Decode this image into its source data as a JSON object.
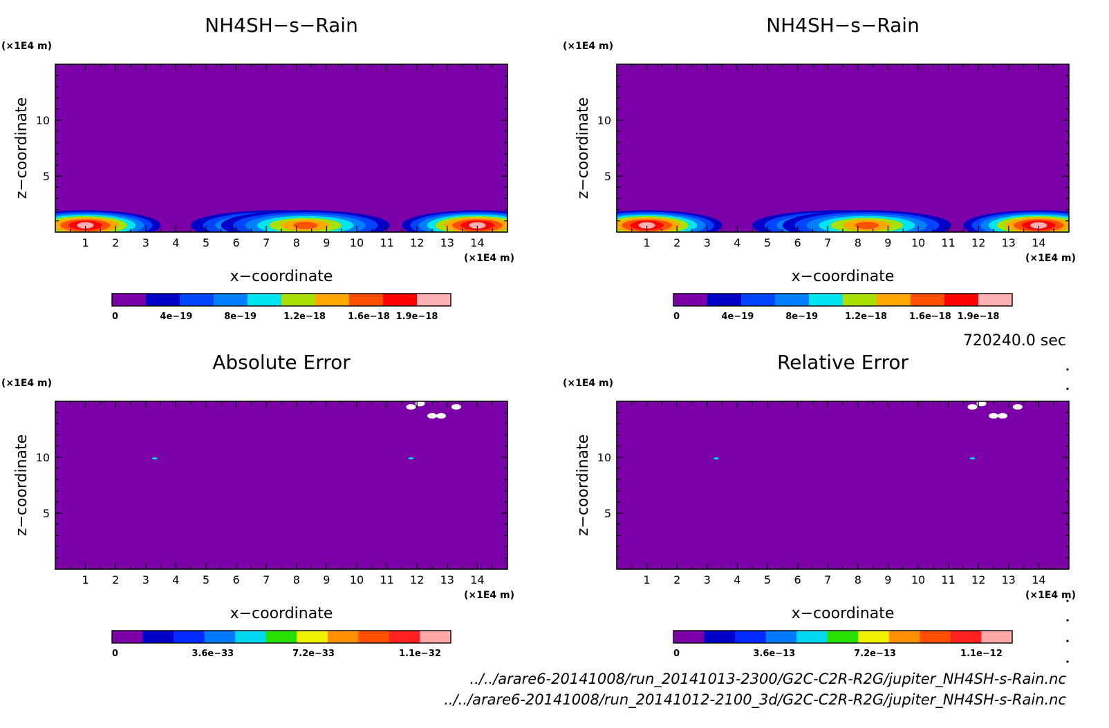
{
  "figure": {
    "time_label": "720240.0 sec",
    "files": [
      "../../arare6-20141008/run_20141013-2300/G2C-C2R-R2G/jupiter_NH4SH-s-Rain.nc",
      "../../arare6-20141008/run_20141012-2100_3d/G2C-C2R-R2G/jupiter_NH4SH-s-Rain.nc"
    ]
  },
  "chart_data": [
    {
      "type": "heatmap",
      "title": "NH4SH−s−Rain",
      "xlabel": "x−coordinate",
      "ylabel": "z−coordinate",
      "x_unit": "(×1E4 m)",
      "y_unit": "(×1E4 m)",
      "xlim": [
        0,
        15
      ],
      "ylim": [
        0,
        15
      ],
      "x_ticks": [
        1,
        2,
        3,
        4,
        5,
        6,
        7,
        8,
        9,
        10,
        11,
        12,
        13,
        14
      ],
      "y_ticks": [
        5,
        10
      ],
      "background_level": 0,
      "features": [
        {
          "x": 1.0,
          "z": 0.6,
          "half_width": 2.5,
          "peak": 1.9e-18
        },
        {
          "x": 14.0,
          "z": 0.6,
          "half_width": 2.5,
          "peak": 1.9e-18
        },
        {
          "x": 7.3,
          "z": 0.6,
          "half_width": 2.8,
          "peak": 1.3e-18
        },
        {
          "x": 8.3,
          "z": 0.6,
          "half_width": 2.8,
          "peak": 1.3e-18
        }
      ],
      "colorbar": {
        "colors": [
          "#7b00a8",
          "#0000c8",
          "#0044ff",
          "#0080ff",
          "#00e4f0",
          "#a8e000",
          "#ffa800",
          "#ff5000",
          "#ff0000",
          "#ffb0b0"
        ],
        "tick_labels": [
          "0",
          "4e−19",
          "8e−19",
          "1.2e−18",
          "1.6e−18",
          "1.9e−18"
        ],
        "tick_values": [
          0,
          4e-19,
          8e-19,
          1.2e-18,
          1.6e-18,
          1.9e-18
        ]
      }
    },
    {
      "type": "heatmap",
      "title": "NH4SH−s−Rain",
      "xlabel": "x−coordinate",
      "ylabel": "z−coordinate",
      "x_unit": "(×1E4 m)",
      "y_unit": "(×1E4 m)",
      "xlim": [
        0,
        15
      ],
      "ylim": [
        0,
        15
      ],
      "x_ticks": [
        1,
        2,
        3,
        4,
        5,
        6,
        7,
        8,
        9,
        10,
        11,
        12,
        13,
        14
      ],
      "y_ticks": [
        5,
        10
      ],
      "background_level": 0,
      "features": [
        {
          "x": 1.0,
          "z": 0.6,
          "half_width": 2.5,
          "peak": 1.9e-18
        },
        {
          "x": 14.0,
          "z": 0.6,
          "half_width": 2.5,
          "peak": 1.9e-18
        },
        {
          "x": 7.3,
          "z": 0.6,
          "half_width": 2.8,
          "peak": 1.3e-18
        },
        {
          "x": 8.3,
          "z": 0.6,
          "half_width": 2.8,
          "peak": 1.3e-18
        }
      ],
      "colorbar": {
        "colors": [
          "#7b00a8",
          "#0000c8",
          "#0044ff",
          "#0080ff",
          "#00e4f0",
          "#a8e000",
          "#ffa800",
          "#ff5000",
          "#ff0000",
          "#ffb0b0"
        ],
        "tick_labels": [
          "0",
          "4e−19",
          "8e−19",
          "1.2e−18",
          "1.6e−18",
          "1.9e−18"
        ],
        "tick_values": [
          0,
          4e-19,
          8e-19,
          1.2e-18,
          1.6e-18,
          1.9e-18
        ]
      }
    },
    {
      "type": "heatmap",
      "title": "Absolute Error",
      "xlabel": "x−coordinate",
      "ylabel": "z−coordinate",
      "x_unit": "(×1E4 m)",
      "y_unit": "(×1E4 m)",
      "xlim": [
        0,
        15
      ],
      "ylim": [
        0,
        15
      ],
      "x_ticks": [
        1,
        2,
        3,
        4,
        5,
        6,
        7,
        8,
        9,
        10,
        11,
        12,
        13,
        14
      ],
      "y_ticks": [
        5,
        10
      ],
      "background_level": 0,
      "missing_spots": [
        {
          "x": 11.8,
          "z": 14.5
        },
        {
          "x": 12.1,
          "z": 14.8
        },
        {
          "x": 12.5,
          "z": 13.7
        },
        {
          "x": 12.8,
          "z": 13.7
        },
        {
          "x": 13.3,
          "z": 14.5
        }
      ],
      "small_spots": [
        {
          "x": 3.3,
          "z": 9.9
        },
        {
          "x": 11.8,
          "z": 9.9
        }
      ],
      "colorbar": {
        "colors": [
          "#7b00a8",
          "#0000c8",
          "#0028ff",
          "#0078ff",
          "#00d8f0",
          "#28e000",
          "#f0f000",
          "#ff9000",
          "#ff5000",
          "#ff2020",
          "#ffa8a8"
        ],
        "tick_labels": [
          "0",
          "3.6e−33",
          "7.2e−33",
          "1.1e−32"
        ],
        "tick_values": [
          0,
          3.6e-33,
          7.2e-33,
          1.1e-32
        ]
      }
    },
    {
      "type": "heatmap",
      "title": "Relative Error",
      "xlabel": "x−coordinate",
      "ylabel": "z−coordinate",
      "x_unit": "(×1E4 m)",
      "y_unit": "(×1E4 m)",
      "xlim": [
        0,
        15
      ],
      "ylim": [
        0,
        15
      ],
      "x_ticks": [
        1,
        2,
        3,
        4,
        5,
        6,
        7,
        8,
        9,
        10,
        11,
        12,
        13,
        14
      ],
      "y_ticks": [
        5,
        10
      ],
      "background_level": 0,
      "missing_spots": [
        {
          "x": 11.8,
          "z": 14.5
        },
        {
          "x": 12.1,
          "z": 14.8
        },
        {
          "x": 12.5,
          "z": 13.7
        },
        {
          "x": 12.8,
          "z": 13.7
        },
        {
          "x": 13.3,
          "z": 14.5
        }
      ],
      "small_spots": [
        {
          "x": 3.3,
          "z": 9.9
        },
        {
          "x": 11.8,
          "z": 9.9
        }
      ],
      "colorbar": {
        "colors": [
          "#7b00a8",
          "#0000c8",
          "#0028ff",
          "#0078ff",
          "#00d8f0",
          "#28e000",
          "#f0f000",
          "#ff9000",
          "#ff5000",
          "#ff2020",
          "#ffa8a8"
        ],
        "tick_labels": [
          "0",
          "3.6e−13",
          "7.2e−13",
          "1.1e−12"
        ],
        "tick_values": [
          0,
          3.6e-13,
          7.2e-13,
          1.1e-12
        ]
      }
    }
  ]
}
